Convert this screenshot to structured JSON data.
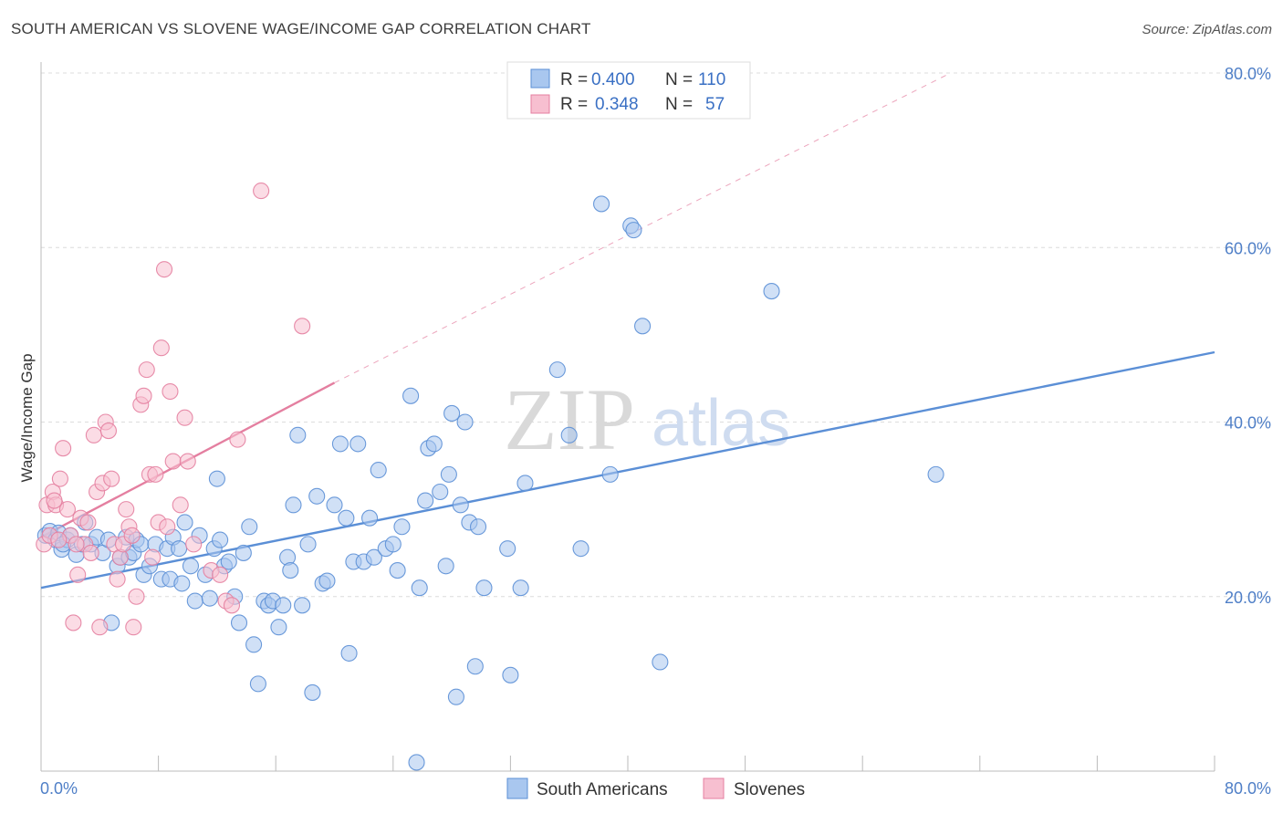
{
  "title": "SOUTH AMERICAN VS SLOVENE WAGE/INCOME GAP CORRELATION CHART",
  "source": "Source: ZipAtlas.com",
  "watermark": {
    "zip": "ZIP",
    "atlas": "atlas"
  },
  "legend_top": [
    {
      "r_label": "R =",
      "r_value": "0.400",
      "n_label": "N =",
      "n_value": "110",
      "color": "#a9c7ef",
      "stroke": "#5b8fd6"
    },
    {
      "r_label": "R =",
      "r_value": "0.348",
      "n_label": "N =",
      "n_value": "57",
      "color": "#f7bfd0",
      "stroke": "#e47fa0"
    }
  ],
  "legend_bottom": [
    {
      "label": "South Americans",
      "color": "#a9c7ef",
      "stroke": "#5b8fd6"
    },
    {
      "label": "Slovenes",
      "color": "#f7bfd0",
      "stroke": "#e47fa0"
    }
  ],
  "chart_data": {
    "type": "scatter",
    "ylabel": "Wage/Income Gap",
    "xlim": [
      0,
      80
    ],
    "ylim": [
      0,
      80
    ],
    "x_tick_labels": [
      "0.0%",
      "80.0%"
    ],
    "y_ticks": [
      20,
      40,
      60,
      80
    ],
    "y_tick_labels": [
      "20.0%",
      "40.0%",
      "60.0%",
      "80.0%"
    ],
    "grid": true,
    "legend": "top-center",
    "series": [
      {
        "name": "South Americans",
        "color": "#5b8fd6",
        "fill": "#a9c7ef",
        "trend": {
          "x0": 0,
          "y0": 21.0,
          "x1": 80,
          "y1": 48.0
        },
        "points": [
          [
            0.3,
            27.0
          ],
          [
            0.6,
            27.5
          ],
          [
            1.0,
            26.5
          ],
          [
            1.2,
            27.3
          ],
          [
            1.4,
            25.4
          ],
          [
            1.8,
            26.5
          ],
          [
            2.0,
            27.0
          ],
          [
            2.4,
            24.8
          ],
          [
            2.8,
            26.0
          ],
          [
            3.0,
            28.5
          ],
          [
            3.4,
            26.0
          ],
          [
            3.8,
            26.8
          ],
          [
            4.2,
            25.0
          ],
          [
            4.6,
            26.5
          ],
          [
            4.8,
            17.0
          ],
          [
            5.2,
            23.5
          ],
          [
            5.4,
            24.5
          ],
          [
            5.8,
            26.8
          ],
          [
            6.0,
            24.5
          ],
          [
            6.3,
            25.0
          ],
          [
            6.5,
            26.5
          ],
          [
            6.8,
            26.0
          ],
          [
            7.0,
            22.5
          ],
          [
            7.4,
            23.5
          ],
          [
            7.8,
            26.0
          ],
          [
            8.2,
            22.0
          ],
          [
            8.6,
            25.5
          ],
          [
            8.8,
            22.0
          ],
          [
            9.0,
            26.8
          ],
          [
            9.4,
            25.5
          ],
          [
            9.6,
            21.5
          ],
          [
            9.8,
            28.5
          ],
          [
            10.2,
            23.5
          ],
          [
            10.5,
            19.5
          ],
          [
            10.8,
            27.0
          ],
          [
            11.2,
            22.5
          ],
          [
            11.5,
            19.8
          ],
          [
            11.8,
            25.5
          ],
          [
            12.0,
            33.5
          ],
          [
            12.2,
            26.5
          ],
          [
            12.5,
            23.5
          ],
          [
            12.8,
            24.0
          ],
          [
            13.2,
            20.0
          ],
          [
            13.5,
            17.0
          ],
          [
            13.8,
            25.0
          ],
          [
            14.2,
            28.0
          ],
          [
            14.5,
            14.5
          ],
          [
            14.8,
            10.0
          ],
          [
            15.2,
            19.5
          ],
          [
            15.5,
            19.0
          ],
          [
            15.8,
            19.5
          ],
          [
            16.2,
            16.5
          ],
          [
            16.5,
            19.0
          ],
          [
            16.8,
            24.5
          ],
          [
            17.0,
            23.0
          ],
          [
            17.2,
            30.5
          ],
          [
            17.5,
            38.5
          ],
          [
            17.8,
            19.0
          ],
          [
            18.2,
            26.0
          ],
          [
            18.5,
            9.0
          ],
          [
            18.8,
            31.5
          ],
          [
            19.2,
            21.5
          ],
          [
            19.5,
            21.8
          ],
          [
            20.0,
            30.5
          ],
          [
            20.4,
            37.5
          ],
          [
            20.8,
            29.0
          ],
          [
            21.0,
            13.5
          ],
          [
            21.3,
            24.0
          ],
          [
            21.6,
            37.5
          ],
          [
            22.0,
            24.0
          ],
          [
            22.4,
            29.0
          ],
          [
            22.7,
            24.5
          ],
          [
            23.0,
            34.5
          ],
          [
            23.5,
            25.5
          ],
          [
            24.0,
            26.0
          ],
          [
            24.3,
            23.0
          ],
          [
            24.6,
            28.0
          ],
          [
            25.2,
            43.0
          ],
          [
            25.6,
            1.0
          ],
          [
            25.8,
            21.0
          ],
          [
            26.2,
            31.0
          ],
          [
            26.4,
            37.0
          ],
          [
            26.8,
            37.5
          ],
          [
            27.2,
            32.0
          ],
          [
            27.6,
            23.5
          ],
          [
            27.8,
            34.0
          ],
          [
            28.0,
            41.0
          ],
          [
            28.3,
            8.5
          ],
          [
            28.6,
            30.5
          ],
          [
            28.9,
            40.0
          ],
          [
            29.2,
            28.5
          ],
          [
            29.6,
            12.0
          ],
          [
            29.8,
            28.0
          ],
          [
            30.2,
            21.0
          ],
          [
            31.8,
            25.5
          ],
          [
            32.0,
            11.0
          ],
          [
            32.7,
            21.0
          ],
          [
            33.0,
            33.0
          ],
          [
            35.2,
            46.0
          ],
          [
            36.0,
            38.5
          ],
          [
            36.8,
            25.5
          ],
          [
            38.2,
            65.0
          ],
          [
            38.8,
            34.0
          ],
          [
            40.2,
            62.5
          ],
          [
            40.4,
            62.0
          ],
          [
            41.0,
            51.0
          ],
          [
            42.2,
            12.5
          ],
          [
            49.8,
            55.0
          ],
          [
            61.0,
            34.0
          ],
          [
            1.5,
            26.0
          ]
        ]
      },
      {
        "name": "Slovenes",
        "color": "#e47fa0",
        "fill": "#f7bfd0",
        "trend": {
          "x0": 0,
          "y0": 26.8,
          "x1": 20.0,
          "y1": 44.5
        },
        "trend_ext": {
          "x0": 20.0,
          "y0": 44.5,
          "x1": 62.0,
          "y1": 80.0
        },
        "points": [
          [
            0.2,
            26.0
          ],
          [
            0.4,
            30.5
          ],
          [
            0.8,
            32.0
          ],
          [
            1.0,
            30.5
          ],
          [
            1.3,
            33.5
          ],
          [
            1.5,
            37.0
          ],
          [
            1.8,
            30.0
          ],
          [
            2.0,
            27.0
          ],
          [
            2.2,
            17.0
          ],
          [
            2.5,
            22.5
          ],
          [
            2.7,
            29.0
          ],
          [
            3.0,
            26.0
          ],
          [
            3.2,
            28.5
          ],
          [
            3.6,
            38.5
          ],
          [
            3.8,
            32.0
          ],
          [
            4.0,
            16.5
          ],
          [
            4.2,
            33.0
          ],
          [
            4.4,
            40.0
          ],
          [
            4.6,
            39.0
          ],
          [
            4.8,
            33.5
          ],
          [
            5.0,
            26.0
          ],
          [
            5.2,
            22.0
          ],
          [
            5.4,
            24.5
          ],
          [
            5.6,
            26.0
          ],
          [
            5.8,
            30.0
          ],
          [
            6.0,
            28.0
          ],
          [
            6.3,
            16.5
          ],
          [
            6.5,
            20.0
          ],
          [
            6.8,
            42.0
          ],
          [
            7.0,
            43.0
          ],
          [
            7.2,
            46.0
          ],
          [
            7.4,
            34.0
          ],
          [
            7.6,
            24.5
          ],
          [
            7.8,
            34.0
          ],
          [
            8.0,
            28.5
          ],
          [
            8.2,
            48.5
          ],
          [
            8.4,
            57.5
          ],
          [
            8.6,
            28.0
          ],
          [
            8.8,
            43.5
          ],
          [
            9.0,
            35.5
          ],
          [
            9.5,
            30.5
          ],
          [
            9.8,
            40.5
          ],
          [
            10.0,
            35.5
          ],
          [
            10.4,
            26.0
          ],
          [
            11.6,
            23.0
          ],
          [
            12.2,
            22.5
          ],
          [
            12.6,
            19.5
          ],
          [
            13.0,
            19.0
          ],
          [
            13.4,
            38.0
          ],
          [
            15.0,
            66.5
          ],
          [
            17.8,
            51.0
          ],
          [
            0.6,
            27.0
          ],
          [
            1.2,
            26.5
          ],
          [
            2.4,
            26.0
          ],
          [
            3.4,
            25.0
          ],
          [
            6.2,
            27.0
          ],
          [
            0.9,
            31.0
          ]
        ]
      }
    ]
  }
}
